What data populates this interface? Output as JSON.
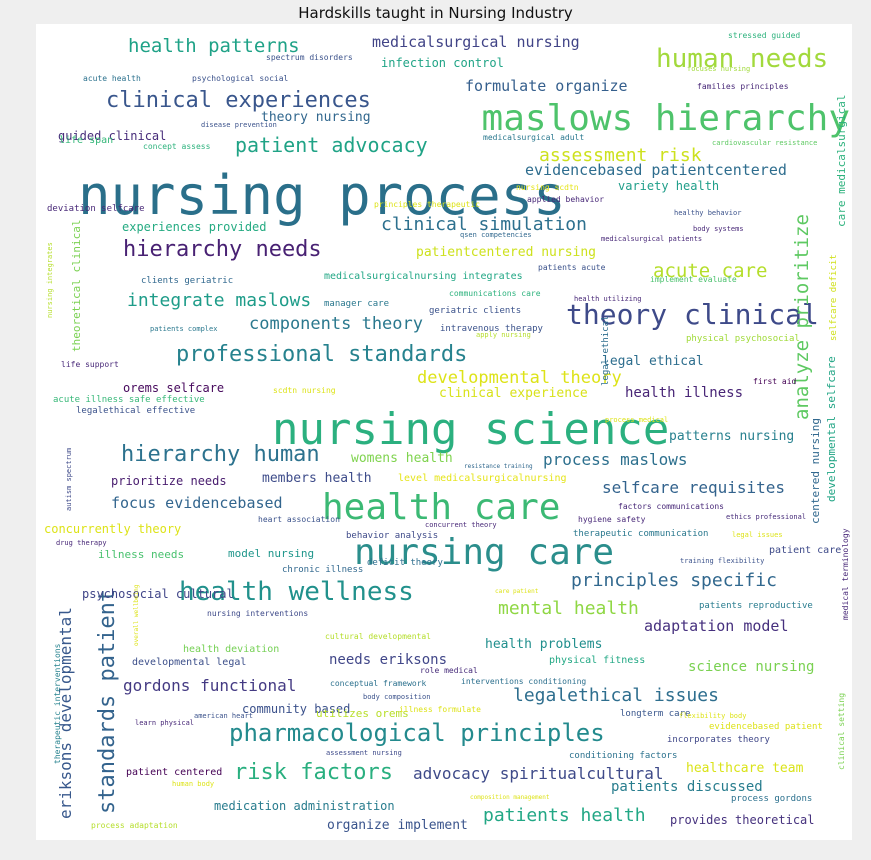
{
  "chart_data": {
    "type": "wordcloud",
    "title": "Hardskills taught in Nursing Industry",
    "words": [
      {
        "text": "nursing process",
        "color": "#2a6f8a",
        "weight": 54
      },
      {
        "text": "nursing science",
        "color": "#2bb07f",
        "weight": 44
      },
      {
        "text": "maslows hierarchy",
        "color": "#4ec36b",
        "weight": 36
      },
      {
        "text": "health care",
        "color": "#3bb974",
        "weight": 36
      },
      {
        "text": "nursing care",
        "color": "#2b8e8c",
        "weight": 36
      },
      {
        "text": "theory clinical",
        "color": "#3e4a89",
        "weight": 28
      },
      {
        "text": "human needs",
        "color": "#a2d93c",
        "weight": 26
      },
      {
        "text": "health wellness",
        "color": "#21918c",
        "weight": 26
      },
      {
        "text": "pharmacological principles",
        "color": "#238a8d",
        "weight": 24
      },
      {
        "text": "clinical experiences",
        "color": "#39568c",
        "weight": 22
      },
      {
        "text": "hierarchy needs",
        "color": "#482173",
        "weight": 22
      },
      {
        "text": "professional standards",
        "color": "#26828e",
        "weight": 22
      },
      {
        "text": "hierarchy human",
        "color": "#2c728e",
        "weight": 22
      },
      {
        "text": "risk factors",
        "color": "#29af7f",
        "weight": 22
      },
      {
        "text": "standards patient",
        "color": "#33638d",
        "weight": 22
      },
      {
        "text": "patient advocacy",
        "color": "#20a386",
        "weight": 20
      },
      {
        "text": "health patterns",
        "color": "#1fa287",
        "weight": 19
      },
      {
        "text": "acute care",
        "color": "#b5de2b",
        "weight": 19
      },
      {
        "text": "analyze prioritize",
        "color": "#5ec962",
        "weight": 19
      },
      {
        "text": "assessment risk",
        "color": "#cde11d",
        "weight": 18
      },
      {
        "text": "clinical simulation",
        "color": "#2d708e",
        "weight": 18
      },
      {
        "text": "integrate maslows",
        "color": "#1e9c89",
        "weight": 18
      },
      {
        "text": "principles specific",
        "color": "#31688e",
        "weight": 18
      },
      {
        "text": "mental health",
        "color": "#8fd744",
        "weight": 18
      },
      {
        "text": "legalethical issues",
        "color": "#2e6e8e",
        "weight": 18
      },
      {
        "text": "patients health",
        "color": "#22a785",
        "weight": 18
      },
      {
        "text": "components theory",
        "color": "#2a788e",
        "weight": 17
      },
      {
        "text": "developmental theory",
        "color": "#dde318",
        "weight": 17
      },
      {
        "text": "selfcare requisites",
        "color": "#33638d",
        "weight": 16
      },
      {
        "text": "gordons functional",
        "color": "#443a83",
        "weight": 16
      },
      {
        "text": "process maslows",
        "color": "#2d708e",
        "weight": 16
      },
      {
        "text": "advocacy spiritualcultural",
        "color": "#3e4a89",
        "weight": 16
      },
      {
        "text": "eriksons developmental",
        "color": "#38588c",
        "weight": 16
      },
      {
        "text": "medicalsurgical nursing",
        "color": "#414487",
        "weight": 15
      },
      {
        "text": "formulate organize",
        "color": "#355f8d",
        "weight": 15
      },
      {
        "text": "evidencebased patientcentered",
        "color": "#2e6d8e",
        "weight": 15
      },
      {
        "text": "adaptation model",
        "color": "#46307e",
        "weight": 15
      },
      {
        "text": "focus evidencebased",
        "color": "#32658e",
        "weight": 15
      },
      {
        "text": "needs eriksons",
        "color": "#404688",
        "weight": 14
      },
      {
        "text": "science nursing",
        "color": "#7ad151",
        "weight": 14
      },
      {
        "text": "patients discussed",
        "color": "#287d8e",
        "weight": 14
      },
      {
        "text": "health illness",
        "color": "#482576",
        "weight": 14
      },
      {
        "text": "clinical experience",
        "color": "#d8e219",
        "weight": 13
      },
      {
        "text": "legal ethical",
        "color": "#2e6e8e",
        "weight": 13
      },
      {
        "text": "patientcentered nursing",
        "color": "#cde11d",
        "weight": 13
      },
      {
        "text": "theory nursing",
        "color": "#31678e",
        "weight": 13
      },
      {
        "text": "patterns nursing",
        "color": "#27808e",
        "weight": 13
      },
      {
        "text": "organize implement",
        "color": "#3a548c",
        "weight": 13
      },
      {
        "text": "healthcare team",
        "color": "#dae319",
        "weight": 13
      },
      {
        "text": "members health",
        "color": "#3e4c8a",
        "weight": 13
      },
      {
        "text": "womens health",
        "color": "#7fd34e",
        "weight": 13
      },
      {
        "text": "health problems",
        "color": "#218f8d",
        "weight": 13
      },
      {
        "text": "provides theoretical",
        "color": "#46327e",
        "weight": 12
      },
      {
        "text": "medication administration",
        "color": "#287c8e",
        "weight": 12
      },
      {
        "text": "psychosocial cultural",
        "color": "#404588",
        "weight": 12
      },
      {
        "text": "experiences provided",
        "color": "#25ab82",
        "weight": 12
      },
      {
        "text": "infection control",
        "color": "#20a486",
        "weight": 12
      },
      {
        "text": "guided clinical",
        "color": "#472c7a",
        "weight": 12
      },
      {
        "text": "variety health",
        "color": "#1f9e89",
        "weight": 12
      },
      {
        "text": "prioritize needs",
        "color": "#481c6e",
        "weight": 12
      },
      {
        "text": "orems selfcare",
        "color": "#46085c",
        "weight": 12
      },
      {
        "text": "community based",
        "color": "#3b518b",
        "weight": 12
      },
      {
        "text": "concurrently theory",
        "color": "#dde318",
        "weight": 12
      },
      {
        "text": "illness needs",
        "color": "#48c16e",
        "weight": 11
      },
      {
        "text": "model nursing",
        "color": "#1f968b",
        "weight": 11
      },
      {
        "text": "utilizes orems",
        "color": "#b8de29",
        "weight": 11
      },
      {
        "text": "health deviation",
        "color": "#75d054",
        "weight": 10
      },
      {
        "text": "developmental legal",
        "color": "#3c4f8a",
        "weight": 10
      },
      {
        "text": "physical fitness",
        "color": "#22a884",
        "weight": 10
      },
      {
        "text": "patient centered",
        "color": "#440154",
        "weight": 10
      },
      {
        "text": "level medicalsurgicalnursing",
        "color": "#e5e419",
        "weight": 10
      },
      {
        "text": "theoretical clinical",
        "color": "#7ad151",
        "weight": 11
      },
      {
        "text": "centered nursing",
        "color": "#31688e",
        "weight": 11
      },
      {
        "text": "developmental selfcare",
        "color": "#21a585",
        "weight": 11
      },
      {
        "text": "care medicalsurgical",
        "color": "#2db27d",
        "weight": 11
      },
      {
        "text": "medicalsurgicalnursing integrates",
        "color": "#22a785",
        "weight": 10
      },
      {
        "text": "patient care",
        "color": "#3e4a89",
        "weight": 10
      },
      {
        "text": "patients reproductive",
        "color": "#287c8e",
        "weight": 9
      },
      {
        "text": "incorporates theory",
        "color": "#3f4788",
        "weight": 9
      },
      {
        "text": "process gordons",
        "color": "#2c718e",
        "weight": 9
      },
      {
        "text": "longterm care",
        "color": "#39568c",
        "weight": 9
      },
      {
        "text": "evidencebased patient",
        "color": "#dde318",
        "weight": 9
      },
      {
        "text": "conditioning factors",
        "color": "#2c728e",
        "weight": 9
      },
      {
        "text": "therapeutic communication",
        "color": "#2a788e",
        "weight": 9
      },
      {
        "text": "acute illness safe effective",
        "color": "#37b878",
        "weight": 9
      },
      {
        "text": "legalethical effective",
        "color": "#3b528b",
        "weight": 9
      },
      {
        "text": "life span",
        "color": "#35b779",
        "weight": 10
      },
      {
        "text": "deviation selfcare",
        "color": "#482878",
        "weight": 9
      },
      {
        "text": "manager care",
        "color": "#2a788e",
        "weight": 9
      },
      {
        "text": "geriatric clients",
        "color": "#3b528b",
        "weight": 9
      },
      {
        "text": "intravenous therapy",
        "color": "#3b528b",
        "weight": 9
      },
      {
        "text": "clients geriatric",
        "color": "#31688e",
        "weight": 9
      },
      {
        "text": "legal ethical",
        "color": "#2e6e8e",
        "weight": 9
      },
      {
        "text": "physical psychosocial",
        "color": "#a0da39",
        "weight": 9
      },
      {
        "text": "selfcare deficit",
        "color": "#d0e11c",
        "weight": 9
      },
      {
        "text": "scdtn nursing",
        "color": "#dde318",
        "weight": 8
      },
      {
        "text": "deficit theory",
        "color": "#2e6e8e",
        "weight": 9
      },
      {
        "text": "chronic illness",
        "color": "#31688e",
        "weight": 9
      },
      {
        "text": "behavior analysis",
        "color": "#3e4a89",
        "weight": 9
      },
      {
        "text": "heart association",
        "color": "#3b528b",
        "weight": 8
      },
      {
        "text": "applied behavior",
        "color": "#482878",
        "weight": 8
      },
      {
        "text": "first aid",
        "color": "#440154",
        "weight": 8
      },
      {
        "text": "nursing scdtn",
        "color": "#e5e419",
        "weight": 8
      },
      {
        "text": "implement evaluate",
        "color": "#4ac16d",
        "weight": 8
      },
      {
        "text": "medical terminology",
        "color": "#482878",
        "weight": 8
      },
      {
        "text": "therapeutic interventions",
        "color": "#26828e",
        "weight": 8
      },
      {
        "text": "clinical setting",
        "color": "#7ad151",
        "weight": 8
      },
      {
        "text": "life support",
        "color": "#482878",
        "weight": 8
      },
      {
        "text": "autism spectrum",
        "color": "#3e4a89",
        "weight": 7
      },
      {
        "text": "nursing integrates",
        "color": "#b5de2b",
        "weight": 7
      },
      {
        "text": "nursing interventions",
        "color": "#3e4a89",
        "weight": 8
      },
      {
        "text": "cultural developmental",
        "color": "#b5de2b",
        "weight": 8
      },
      {
        "text": "conceptual framework",
        "color": "#2c718e",
        "weight": 8
      },
      {
        "text": "role medical",
        "color": "#472c7a",
        "weight": 8
      },
      {
        "text": "interventions conditioning",
        "color": "#2d708e",
        "weight": 8
      },
      {
        "text": "illness formulate",
        "color": "#dde318",
        "weight": 8
      },
      {
        "text": "assessment nursing",
        "color": "#3e4a89",
        "weight": 7
      },
      {
        "text": "spectrum disorders",
        "color": "#3b528b",
        "weight": 8
      },
      {
        "text": "acute health",
        "color": "#2c728e",
        "weight": 8
      },
      {
        "text": "psychological social",
        "color": "#3b528b",
        "weight": 8
      },
      {
        "text": "families principles",
        "color": "#482878",
        "weight": 8
      },
      {
        "text": "stressed guided",
        "color": "#2db27d",
        "weight": 8
      },
      {
        "text": "focuses nursing",
        "color": "#a0da39",
        "weight": 7
      },
      {
        "text": "cardiovascular resistance",
        "color": "#5ec962",
        "weight": 7
      },
      {
        "text": "medicalsurgical adult",
        "color": "#2a788e",
        "weight": 8
      },
      {
        "text": "disease prevention",
        "color": "#3b528b",
        "weight": 7
      },
      {
        "text": "concept assess",
        "color": "#2db27d",
        "weight": 8
      },
      {
        "text": "principles therapeutic",
        "color": "#dde318",
        "weight": 8
      },
      {
        "text": "qsen competencies",
        "color": "#31688e",
        "weight": 7
      },
      {
        "text": "patients acute",
        "color": "#3b528b",
        "weight": 8
      },
      {
        "text": "communications care",
        "color": "#2db27d",
        "weight": 8
      },
      {
        "text": "health utilizing",
        "color": "#482878",
        "weight": 7
      },
      {
        "text": "healthy behavior",
        "color": "#3b528b",
        "weight": 7
      },
      {
        "text": "body systems",
        "color": "#482878",
        "weight": 7
      },
      {
        "text": "medicalsurgical patients",
        "color": "#482878",
        "weight": 7
      },
      {
        "text": "patients complex",
        "color": "#2a788e",
        "weight": 7
      },
      {
        "text": "apply nursing",
        "color": "#b5de2b",
        "weight": 7
      },
      {
        "text": "process medical",
        "color": "#dde318",
        "weight": 7
      },
      {
        "text": "resistance training",
        "color": "#31688e",
        "weight": 6
      },
      {
        "text": "factors communications",
        "color": "#482878",
        "weight": 8
      },
      {
        "text": "hygiene safety",
        "color": "#482878",
        "weight": 8
      },
      {
        "text": "ethics professional",
        "color": "#472c7a",
        "weight": 7
      },
      {
        "text": "concurrent theory",
        "color": "#482878",
        "weight": 7
      },
      {
        "text": "legal issues",
        "color": "#dde318",
        "weight": 7
      },
      {
        "text": "training flexibility",
        "color": "#3b528b",
        "weight": 7
      },
      {
        "text": "drug therapy",
        "color": "#482878",
        "weight": 7
      },
      {
        "text": "care patient",
        "color": "#dde318",
        "weight": 6
      },
      {
        "text": "overall wellbeing",
        "color": "#dde318",
        "weight": 6
      },
      {
        "text": "body composition",
        "color": "#3b528b",
        "weight": 7
      },
      {
        "text": "learn physical",
        "color": "#482878",
        "weight": 7
      },
      {
        "text": "american heart",
        "color": "#3b528b",
        "weight": 7
      },
      {
        "text": "flexibility body",
        "color": "#dde318",
        "weight": 7
      },
      {
        "text": "human body",
        "color": "#dde318",
        "weight": 7
      },
      {
        "text": "composition management",
        "color": "#dde318",
        "weight": 6
      },
      {
        "text": "process adaptation",
        "color": "#b5de2b",
        "weight": 8
      }
    ]
  }
}
